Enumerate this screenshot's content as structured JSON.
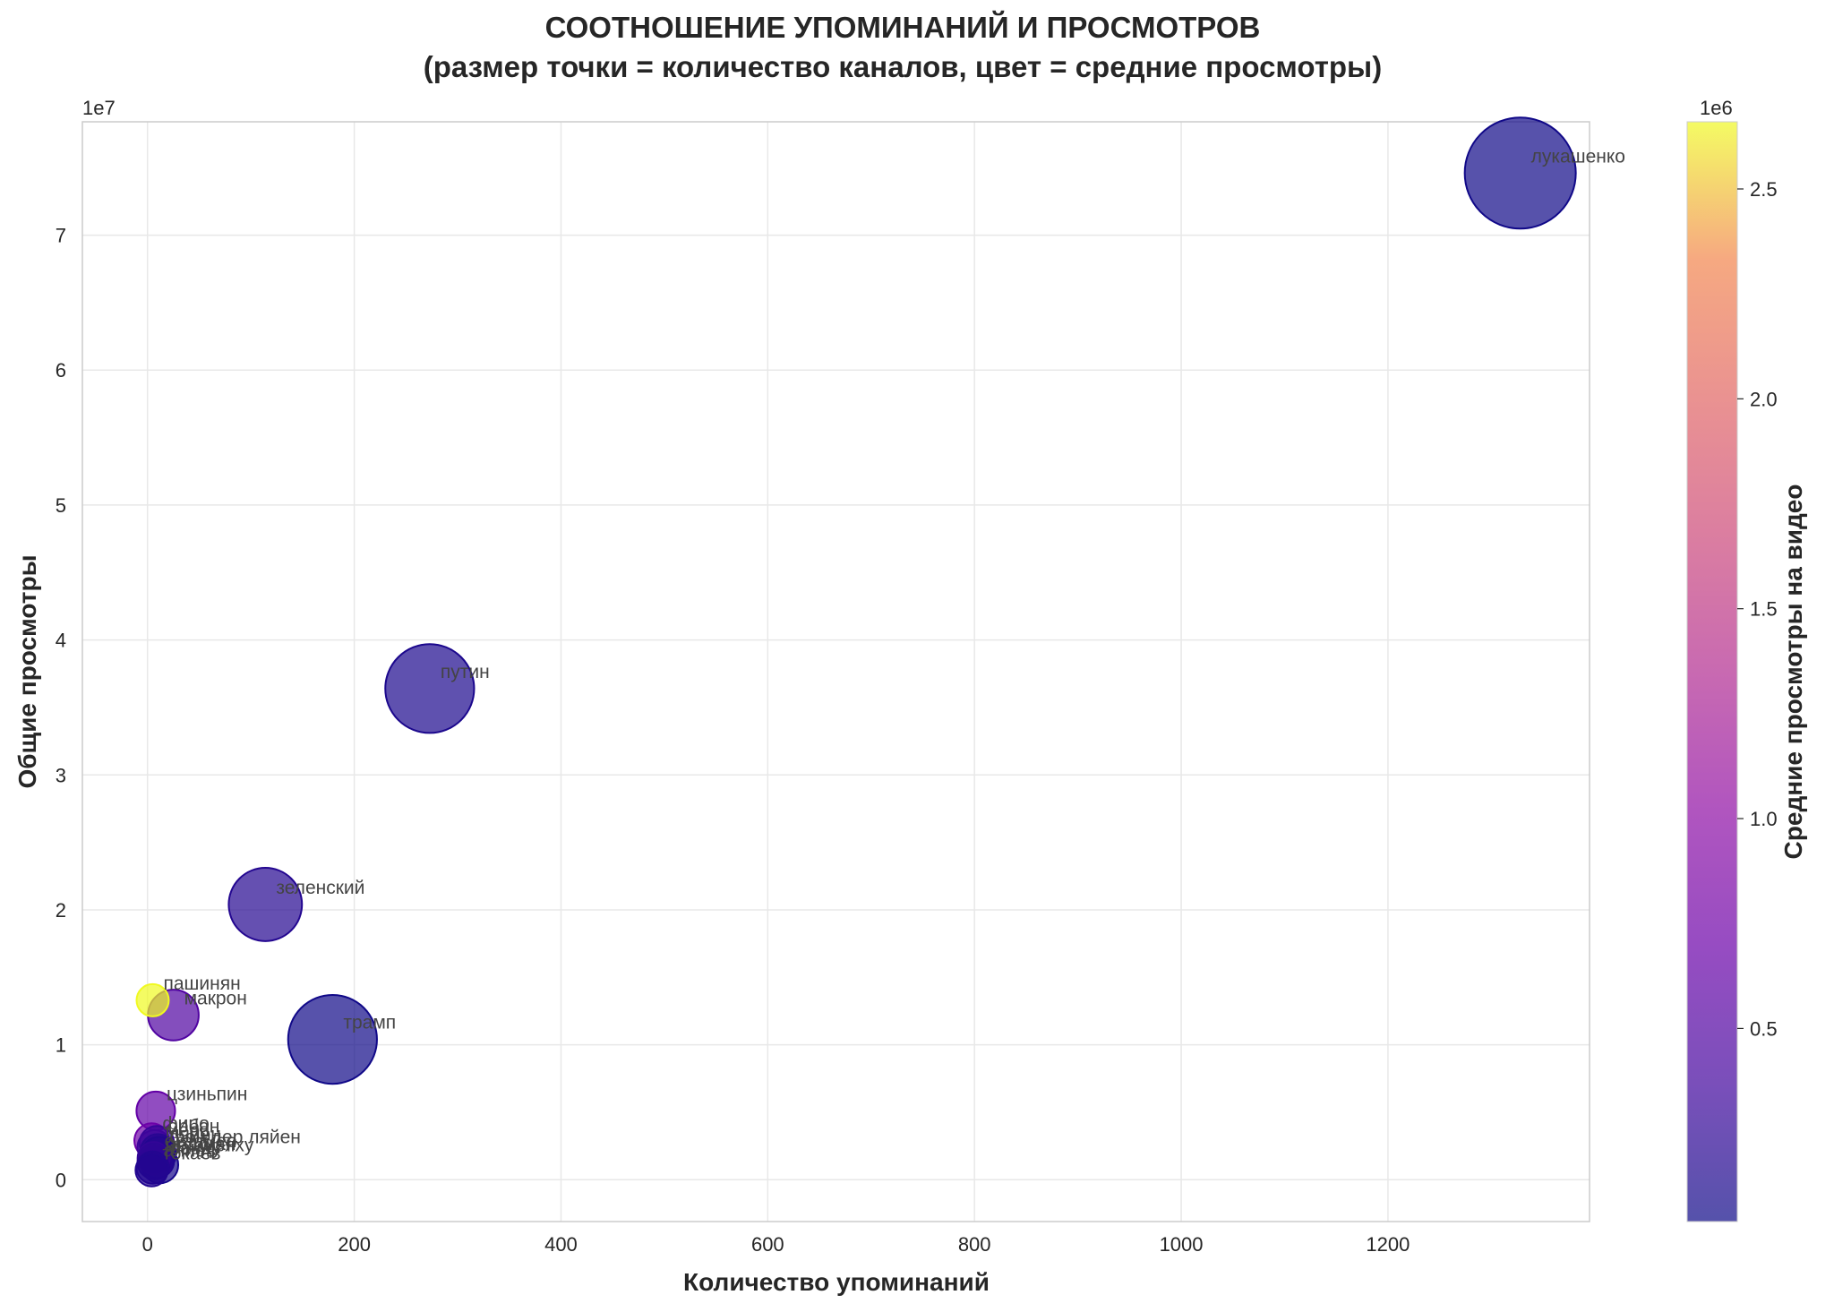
{
  "chart_data": {
    "type": "scatter",
    "title": "СООТНОШЕНИЕ УПОМИНАНИЙ И ПРОСМОТРОВ",
    "subtitle": "(размер точки = количество каналов, цвет = средние просмотры)",
    "xlabel": "Количество упоминаний",
    "ylabel": "Общие просмотры",
    "y_offset_label": "1e7",
    "colorbar_label": "Средние просмотры на видео",
    "colorbar_offset_label": "1e6",
    "colormap": "plasma",
    "xlim": [
      -63,
      1395
    ],
    "ylim": [
      -3.1,
      78.4
    ],
    "y_unit_scale": 10000000,
    "x_ticks": [
      0,
      200,
      400,
      600,
      800,
      1000,
      1200
    ],
    "x_tick_labels": [
      "0",
      "200",
      "400",
      "600",
      "800",
      "1000",
      "1200"
    ],
    "y_ticks": [
      0,
      10,
      20,
      30,
      40,
      50,
      60,
      70
    ],
    "y_tick_labels": [
      "0",
      "1",
      "2",
      "3",
      "4",
      "5",
      "6",
      "7"
    ],
    "colorbar_range": [
      0.04,
      2.66
    ],
    "colorbar_ticks": [
      0.5,
      1.0,
      1.5,
      2.0,
      2.5
    ],
    "colorbar_tick_labels": [
      "0.5",
      "1.0",
      "1.5",
      "2.0",
      "2.5"
    ],
    "grid": true,
    "points": [
      {
        "label": "лукашенко",
        "x": 1328,
        "y": 74.6,
        "channels": 100,
        "avg_views": 0.06
      },
      {
        "label": "путин",
        "x": 273,
        "y": 36.4,
        "channels": 60,
        "avg_views": 0.13
      },
      {
        "label": "зеленский",
        "x": 114,
        "y": 20.4,
        "channels": 38,
        "avg_views": 0.18
      },
      {
        "label": "трамп",
        "x": 179,
        "y": 10.4,
        "channels": 60,
        "avg_views": 0.06
      },
      {
        "label": "пашинян",
        "x": 5,
        "y": 13.3,
        "channels": 4,
        "avg_views": 2.66
      },
      {
        "label": "макрон",
        "x": 25,
        "y": 12.2,
        "channels": 15,
        "avg_views": 0.49
      },
      {
        "label": "цзиньпин",
        "x": 8,
        "y": 5.1,
        "channels": 7,
        "avg_views": 0.64
      },
      {
        "label": "фицо",
        "x": 4,
        "y": 2.9,
        "channels": 5,
        "avg_views": 0.72
      },
      {
        "label": "орбан",
        "x": 9,
        "y": 2.7,
        "channels": 5,
        "avg_views": 0.3
      },
      {
        "label": "мерц",
        "x": 7,
        "y": 2.4,
        "channels": 5,
        "avg_views": 0.34
      },
      {
        "label": "ляйен",
        "x": 10,
        "y": 2.1,
        "channels": 5,
        "avg_views": 0.21
      },
      {
        "label": "фон дер ляйен",
        "x": 11,
        "y": 1.9,
        "channels": 5,
        "avg_views": 0.17
      },
      {
        "label": "стармер",
        "x": 6,
        "y": 1.6,
        "channels": 4,
        "avg_views": 0.27
      },
      {
        "label": "эрдоган",
        "x": 9,
        "y": 1.4,
        "channels": 5,
        "avg_views": 0.16
      },
      {
        "label": "нетаньяху",
        "x": 7,
        "y": 1.3,
        "channels": 5,
        "avg_views": 0.19
      },
      {
        "label": "санду",
        "x": 12,
        "y": 1.1,
        "channels": 6,
        "avg_views": 0.09
      },
      {
        "label": "алиев",
        "x": 5,
        "y": 0.9,
        "channels": 4,
        "avg_views": 0.18
      },
      {
        "label": "токаев",
        "x": 4,
        "y": 0.7,
        "channels": 4,
        "avg_views": 0.17
      }
    ]
  }
}
